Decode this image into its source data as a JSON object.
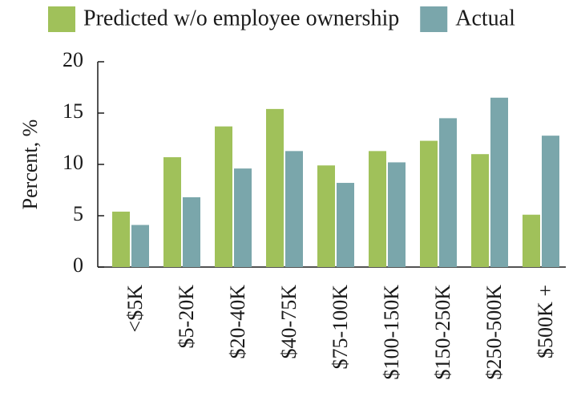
{
  "chart_data": {
    "type": "bar",
    "y_label": "Percent, %",
    "categories": [
      "<$5K",
      "$5-20K",
      "$20-40K",
      "$40-75K",
      "$75-100K",
      "$100-150K",
      "$150-250K",
      "$250-500K",
      "$500K +"
    ],
    "series": [
      {
        "name": "Predicted w/o employee ownership",
        "color": "#a0c15a",
        "values": [
          5.4,
          10.7,
          13.7,
          15.4,
          9.9,
          11.3,
          12.3,
          11.0,
          5.1
        ]
      },
      {
        "name": "Actual",
        "color": "#7aa6ab",
        "values": [
          4.1,
          6.8,
          9.6,
          11.3,
          8.2,
          10.2,
          14.5,
          16.5,
          12.8
        ]
      }
    ],
    "ylim": [
      0,
      20
    ],
    "yticks": [
      0,
      5,
      10,
      15,
      20
    ],
    "grid": false,
    "legend": "top"
  }
}
